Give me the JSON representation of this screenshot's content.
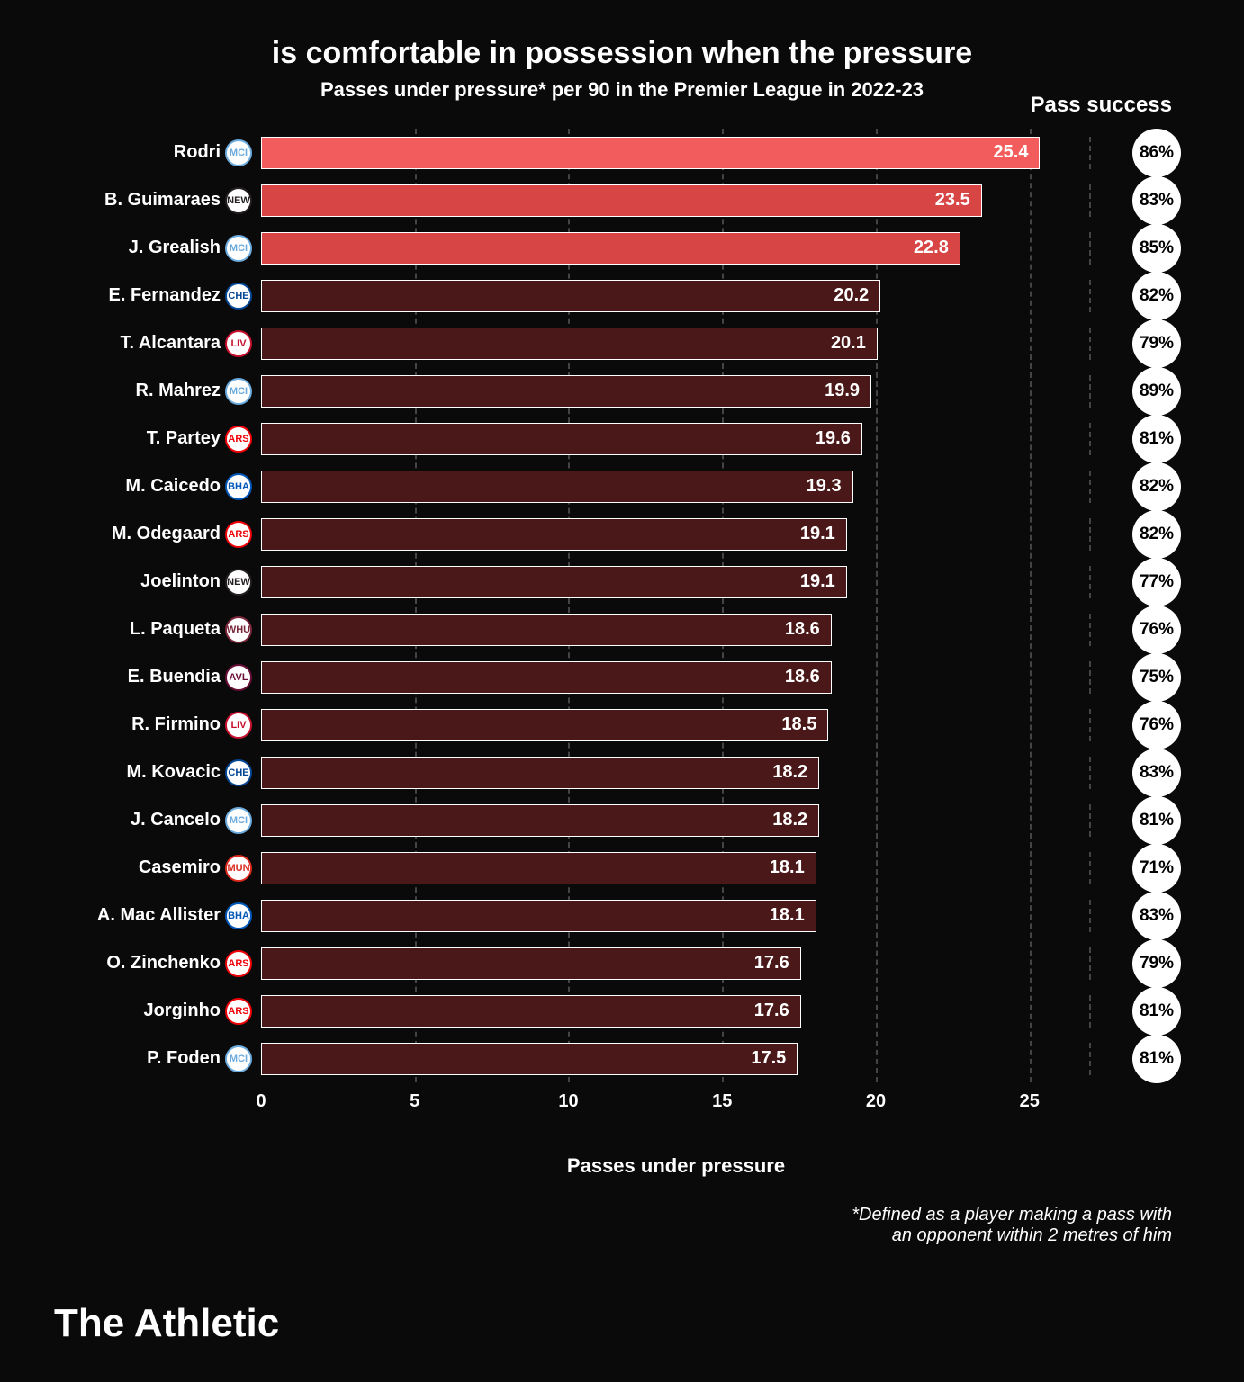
{
  "title": "is comfortable in possession when the pressure",
  "subtitle": "Passes under pressure* per 90 in the Premier League in 2022-23",
  "col_header": "Pass success",
  "x_label": "Passes under pressure",
  "footnote_l1": "*Defined as a player making a pass with",
  "footnote_l2": "an opponent within 2 metres of him",
  "brand": "The Athletic",
  "chart": {
    "type": "horizontal-bar",
    "xmax": 27,
    "xticks": [
      0,
      5,
      10,
      15,
      20,
      25
    ],
    "grid_color": "#444444",
    "background_color": "#0a0a0a",
    "bar_border_color": "#ffffff",
    "label_fontsize": 20,
    "value_fontsize": 20,
    "pct_bg": "#ffffff",
    "pct_fg": "#000000",
    "highlight_colors": [
      "#f25c5c",
      "#d84545",
      "#d84545"
    ],
    "default_bar_color": "#4a1818",
    "rows": [
      {
        "name": "Rodri",
        "team": "MCI",
        "team_bg": "#6CABDD",
        "value": 25.4,
        "pct": "86%",
        "hl": 0
      },
      {
        "name": "B. Guimaraes",
        "team": "NEW",
        "team_bg": "#241F20",
        "value": 23.5,
        "pct": "83%",
        "hl": 1
      },
      {
        "name": "J. Grealish",
        "team": "MCI",
        "team_bg": "#6CABDD",
        "value": 22.8,
        "pct": "85%",
        "hl": 1
      },
      {
        "name": "E. Fernandez",
        "team": "CHE",
        "team_bg": "#034694",
        "value": 20.2,
        "pct": "82%"
      },
      {
        "name": "T. Alcantara",
        "team": "LIV",
        "team_bg": "#C8102E",
        "value": 20.1,
        "pct": "79%"
      },
      {
        "name": "R. Mahrez",
        "team": "MCI",
        "team_bg": "#6CABDD",
        "value": 19.9,
        "pct": "89%"
      },
      {
        "name": "T. Partey",
        "team": "ARS",
        "team_bg": "#EF0107",
        "value": 19.6,
        "pct": "81%"
      },
      {
        "name": "M. Caicedo",
        "team": "BHA",
        "team_bg": "#0057B8",
        "value": 19.3,
        "pct": "82%"
      },
      {
        "name": "M. Odegaard",
        "team": "ARS",
        "team_bg": "#EF0107",
        "value": 19.1,
        "pct": "82%"
      },
      {
        "name": "Joelinton",
        "team": "NEW",
        "team_bg": "#241F20",
        "value": 19.1,
        "pct": "77%"
      },
      {
        "name": "L. Paqueta",
        "team": "WHU",
        "team_bg": "#7A263A",
        "value": 18.6,
        "pct": "76%"
      },
      {
        "name": "E. Buendia",
        "team": "AVL",
        "team_bg": "#670E36",
        "value": 18.6,
        "pct": "75%"
      },
      {
        "name": "R. Firmino",
        "team": "LIV",
        "team_bg": "#C8102E",
        "value": 18.5,
        "pct": "76%"
      },
      {
        "name": "M. Kovacic",
        "team": "CHE",
        "team_bg": "#034694",
        "value": 18.2,
        "pct": "83%"
      },
      {
        "name": "J. Cancelo",
        "team": "MCI",
        "team_bg": "#6CABDD",
        "value": 18.2,
        "pct": "81%"
      },
      {
        "name": "Casemiro",
        "team": "MUN",
        "team_bg": "#DA291C",
        "value": 18.1,
        "pct": "71%"
      },
      {
        "name": "A. Mac Allister",
        "team": "BHA",
        "team_bg": "#0057B8",
        "value": 18.1,
        "pct": "83%"
      },
      {
        "name": "O. Zinchenko",
        "team": "ARS",
        "team_bg": "#EF0107",
        "value": 17.6,
        "pct": "79%"
      },
      {
        "name": "Jorginho",
        "team": "ARS",
        "team_bg": "#EF0107",
        "value": 17.6,
        "pct": "81%"
      },
      {
        "name": "P. Foden",
        "team": "MCI",
        "team_bg": "#6CABDD",
        "value": 17.5,
        "pct": "81%"
      }
    ]
  }
}
